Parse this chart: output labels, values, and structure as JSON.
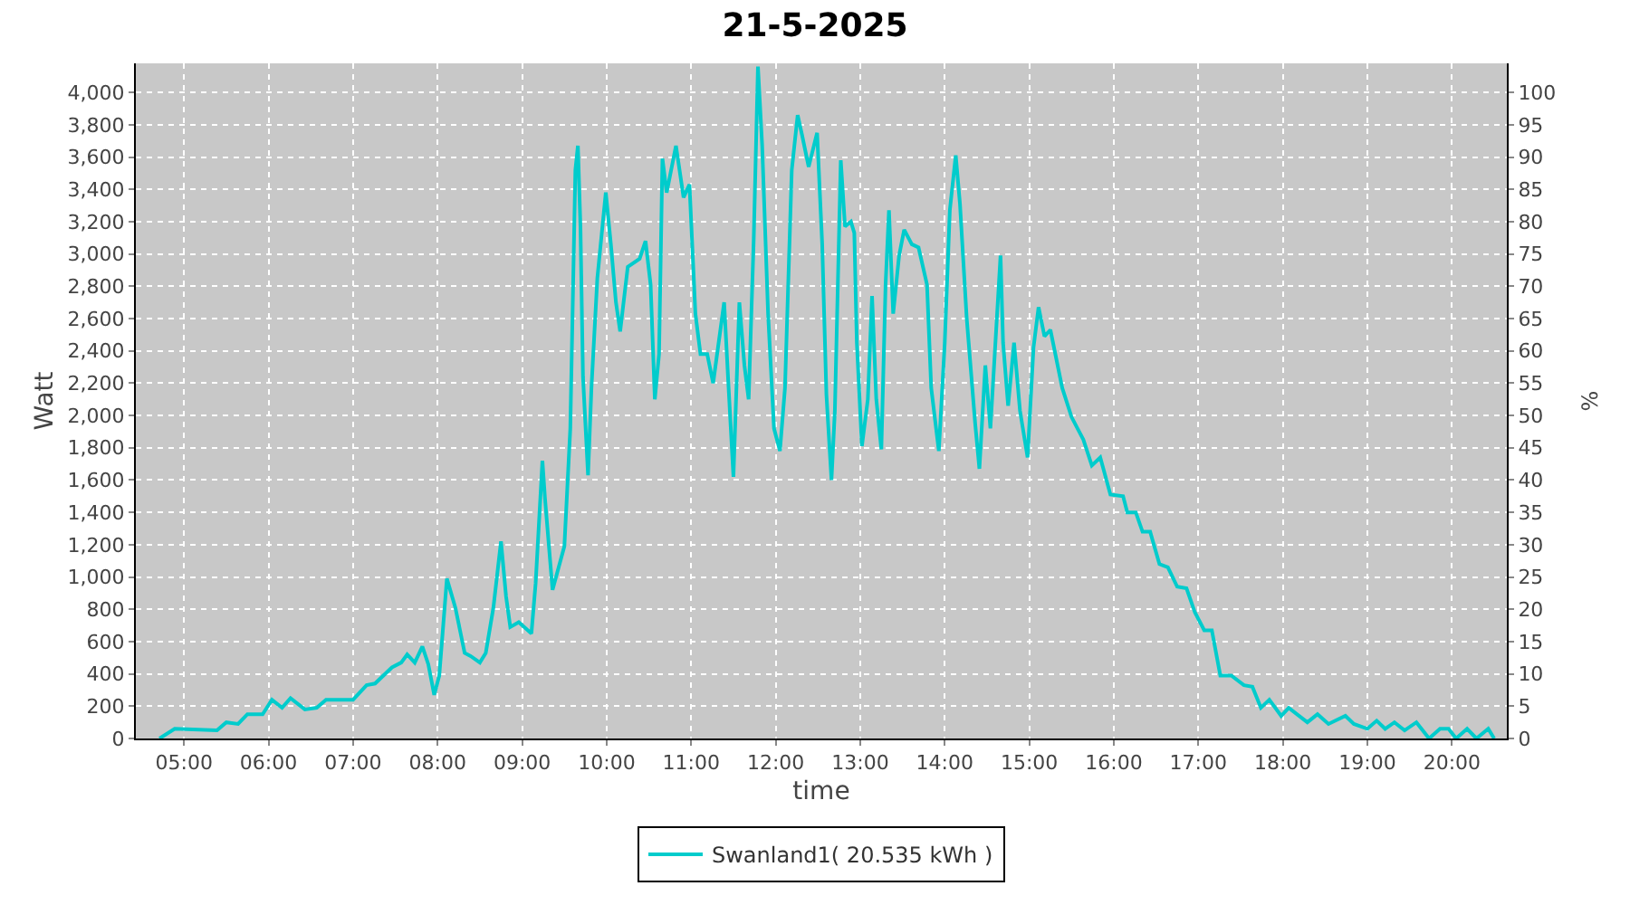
{
  "chart_data": {
    "type": "line",
    "title": "21-5-2025",
    "xlabel": "time",
    "ylabel": "Watt",
    "y2label": "%",
    "x": [
      4.71,
      4.89,
      5.39,
      5.5,
      5.64,
      5.75,
      5.93,
      6.04,
      6.16,
      6.26,
      6.43,
      6.57,
      6.68,
      7.0,
      7.16,
      7.26,
      7.46,
      7.57,
      7.64,
      7.73,
      7.82,
      7.89,
      7.96,
      8.02,
      8.11,
      8.21,
      8.32,
      8.39,
      8.5,
      8.57,
      8.66,
      8.75,
      8.81,
      8.86,
      8.96,
      9.11,
      9.16,
      9.24,
      9.27,
      9.36,
      9.5,
      9.57,
      9.63,
      9.66,
      9.69,
      9.72,
      9.78,
      9.82,
      9.89,
      9.99,
      10.05,
      10.11,
      10.16,
      10.25,
      10.39,
      10.46,
      10.52,
      10.57,
      10.62,
      10.66,
      10.71,
      10.82,
      10.91,
      10.98,
      11.05,
      11.11,
      11.19,
      11.26,
      11.39,
      11.44,
      11.5,
      11.57,
      11.63,
      11.68,
      11.74,
      11.79,
      11.84,
      11.91,
      11.98,
      12.05,
      12.11,
      12.19,
      12.26,
      12.31,
      12.39,
      12.49,
      12.55,
      12.6,
      12.66,
      12.7,
      12.77,
      12.82,
      12.89,
      12.93,
      12.96,
      13.02,
      13.09,
      13.14,
      13.19,
      13.25,
      13.3,
      13.34,
      13.39,
      13.46,
      13.52,
      13.61,
      13.69,
      13.79,
      13.84,
      13.93,
      14.0,
      14.06,
      14.13,
      14.18,
      14.26,
      14.36,
      14.41,
      14.48,
      14.54,
      14.66,
      14.69,
      14.75,
      14.82,
      14.89,
      14.98,
      15.05,
      15.11,
      15.18,
      15.25,
      15.39,
      15.5,
      15.64,
      15.74,
      15.84,
      15.96,
      16.11,
      16.16,
      16.26,
      16.34,
      16.43,
      16.54,
      16.64,
      16.75,
      16.86,
      16.96,
      17.07,
      17.16,
      17.26,
      17.39,
      17.54,
      17.64,
      17.74,
      17.84,
      17.98,
      18.07,
      18.29,
      18.41,
      18.54,
      18.74,
      18.84,
      19.0,
      19.11,
      19.21,
      19.32,
      19.44,
      19.58,
      19.73,
      19.86,
      19.96,
      20.05,
      20.18,
      20.29,
      20.43,
      20.5
    ],
    "series": [
      {
        "name": "Swanland1( 20.535 kWh )",
        "color": "#00cccc",
        "values": [
          0,
          60,
          50,
          100,
          90,
          150,
          150,
          240,
          190,
          250,
          180,
          190,
          240,
          240,
          330,
          340,
          440,
          470,
          520,
          470,
          570,
          460,
          270,
          390,
          990,
          810,
          530,
          510,
          470,
          530,
          810,
          1220,
          880,
          690,
          720,
          650,
          960,
          1720,
          1490,
          920,
          1190,
          1920,
          3520,
          3670,
          3170,
          2240,
          1630,
          2170,
          2850,
          3380,
          3060,
          2700,
          2520,
          2920,
          2970,
          3080,
          2810,
          2100,
          2380,
          3590,
          3380,
          3670,
          3350,
          3430,
          2630,
          2380,
          2380,
          2200,
          2700,
          2200,
          1620,
          2700,
          2310,
          2100,
          3090,
          4160,
          3670,
          2630,
          1920,
          1780,
          2170,
          3520,
          3860,
          3740,
          3540,
          3750,
          3060,
          2130,
          1600,
          2030,
          3580,
          3170,
          3200,
          3130,
          2450,
          1810,
          2100,
          2740,
          2100,
          1790,
          2810,
          3270,
          2630,
          2990,
          3150,
          3060,
          3040,
          2810,
          2170,
          1780,
          2450,
          3270,
          3610,
          3310,
          2600,
          1950,
          1670,
          2310,
          1920,
          2990,
          2450,
          2060,
          2450,
          2030,
          1740,
          2420,
          2670,
          2490,
          2530,
          2170,
          1990,
          1850,
          1690,
          1740,
          1510,
          1500,
          1400,
          1400,
          1280,
          1280,
          1080,
          1060,
          940,
          930,
          780,
          670,
          670,
          390,
          390,
          330,
          320,
          190,
          240,
          140,
          190,
          100,
          150,
          90,
          140,
          90,
          60,
          110,
          60,
          100,
          50,
          100,
          0,
          60,
          60,
          0,
          60,
          0,
          60,
          0
        ]
      }
    ],
    "xlim": [
      4.43,
      20.65
    ],
    "xticks": [
      {
        "value": 5,
        "label": "05:00"
      },
      {
        "value": 6,
        "label": "06:00"
      },
      {
        "value": 7,
        "label": "07:00"
      },
      {
        "value": 8,
        "label": "08:00"
      },
      {
        "value": 9,
        "label": "09:00"
      },
      {
        "value": 10,
        "label": "10:00"
      },
      {
        "value": 11,
        "label": "11:00"
      },
      {
        "value": 12,
        "label": "12:00"
      },
      {
        "value": 13,
        "label": "13:00"
      },
      {
        "value": 14,
        "label": "14:00"
      },
      {
        "value": 15,
        "label": "15:00"
      },
      {
        "value": 16,
        "label": "16:00"
      },
      {
        "value": 17,
        "label": "17:00"
      },
      {
        "value": 18,
        "label": "18:00"
      },
      {
        "value": 19,
        "label": "19:00"
      },
      {
        "value": 20,
        "label": "20:00"
      }
    ],
    "ylim": [
      0,
      4180
    ],
    "yticks": [
      0,
      200,
      400,
      600,
      800,
      {
        "value": 1000,
        "label": "1,000"
      },
      {
        "value": 1200,
        "label": "1,200"
      },
      {
        "value": 1400,
        "label": "1,400"
      },
      {
        "value": 1600,
        "label": "1,600"
      },
      {
        "value": 1800,
        "label": "1,800"
      },
      {
        "value": 2000,
        "label": "2,000"
      },
      {
        "value": 2200,
        "label": "2,200"
      },
      {
        "value": 2400,
        "label": "2,400"
      },
      {
        "value": 2600,
        "label": "2,600"
      },
      {
        "value": 2800,
        "label": "2,800"
      },
      {
        "value": 3000,
        "label": "3,000"
      },
      {
        "value": 3200,
        "label": "3,200"
      },
      {
        "value": 3400,
        "label": "3,400"
      },
      {
        "value": 3600,
        "label": "3,600"
      },
      {
        "value": 3800,
        "label": "3,800"
      },
      {
        "value": 4000,
        "label": "4,000"
      }
    ],
    "y2lim": [
      0,
      104.5
    ],
    "y2ticks": [
      0,
      5,
      10,
      15,
      20,
      25,
      30,
      35,
      40,
      45,
      50,
      55,
      60,
      65,
      70,
      75,
      80,
      85,
      90,
      95,
      100
    ],
    "grid": true,
    "legend": "bottom",
    "marker": "none",
    "line_style": "solid"
  }
}
